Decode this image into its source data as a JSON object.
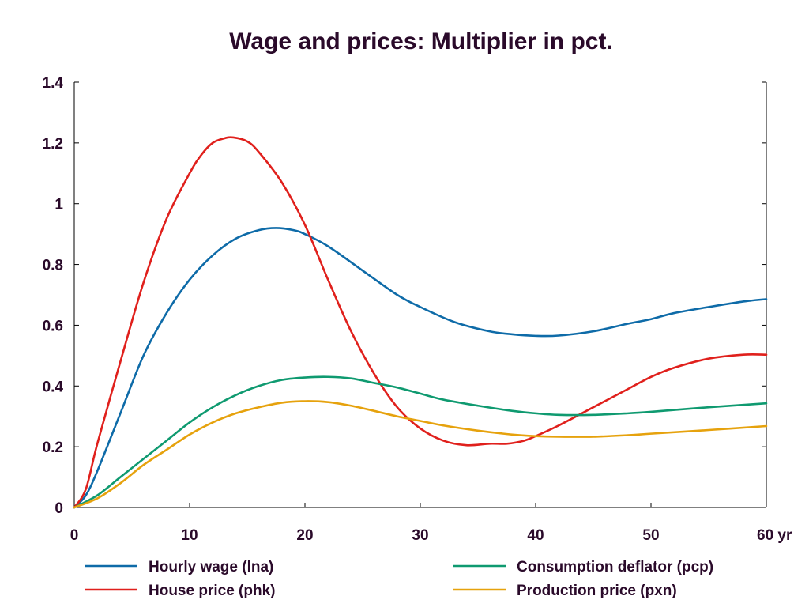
{
  "chart_data": {
    "type": "line",
    "title": "Wage and prices: Multiplier in pct.",
    "xlabel": "",
    "ylabel": "",
    "x_unit_label": "yr",
    "xlim": [
      0,
      60
    ],
    "ylim": [
      0,
      1.4
    ],
    "x_ticks": [
      0,
      10,
      20,
      30,
      40,
      50,
      60
    ],
    "x_tick_labels": [
      "0",
      "10",
      "20",
      "30",
      "40",
      "50",
      "60 yr"
    ],
    "y_ticks": [
      0,
      0.2,
      0.4,
      0.6,
      0.8,
      1.0,
      1.2,
      1.4
    ],
    "y_tick_labels": [
      "0",
      "0.2",
      "0.4",
      "0.6",
      "0.8",
      "1",
      "1.2",
      "1.4"
    ],
    "grid": false,
    "legend_position": "bottom",
    "series": [
      {
        "name": "Hourly wage (lna)",
        "color": "#0e6ba8",
        "x": [
          0,
          1,
          2,
          4,
          6,
          8,
          10,
          12,
          14,
          16,
          17.5,
          19,
          20,
          22,
          25,
          28,
          30,
          33,
          36,
          38,
          40,
          42,
          45,
          48,
          50,
          52,
          55,
          58,
          60
        ],
        "y": [
          0,
          0.04,
          0.12,
          0.31,
          0.5,
          0.64,
          0.75,
          0.83,
          0.885,
          0.913,
          0.92,
          0.913,
          0.9,
          0.86,
          0.78,
          0.7,
          0.66,
          0.61,
          0.58,
          0.57,
          0.565,
          0.566,
          0.58,
          0.605,
          0.62,
          0.64,
          0.66,
          0.678,
          0.686
        ]
      },
      {
        "name": "House price (phk)",
        "color": "#e0201c",
        "x": [
          0,
          1,
          2,
          4,
          6,
          8,
          10,
          11,
          12,
          13,
          13.8,
          15,
          16,
          18,
          20,
          22,
          24,
          26,
          28,
          30,
          32,
          34,
          36,
          37.5,
          39,
          40,
          42,
          45,
          48,
          50,
          52,
          55,
          58,
          60
        ],
        "y": [
          0,
          0.06,
          0.21,
          0.48,
          0.74,
          0.95,
          1.1,
          1.16,
          1.2,
          1.215,
          1.218,
          1.205,
          1.17,
          1.07,
          0.93,
          0.75,
          0.58,
          0.44,
          0.33,
          0.26,
          0.22,
          0.205,
          0.21,
          0.21,
          0.22,
          0.235,
          0.27,
          0.33,
          0.39,
          0.43,
          0.46,
          0.49,
          0.503,
          0.503
        ]
      },
      {
        "name": "Consumption deflator (pcp)",
        "color": "#0f9a70",
        "x": [
          0,
          2,
          4,
          6,
          8,
          10,
          12,
          14,
          16,
          18,
          20,
          22,
          24,
          26,
          28,
          30,
          32,
          35,
          38,
          40,
          42,
          45,
          48,
          50,
          55,
          60
        ],
        "y": [
          0,
          0.04,
          0.1,
          0.16,
          0.22,
          0.28,
          0.33,
          0.37,
          0.4,
          0.42,
          0.428,
          0.43,
          0.425,
          0.41,
          0.395,
          0.375,
          0.355,
          0.335,
          0.318,
          0.31,
          0.305,
          0.305,
          0.31,
          0.315,
          0.33,
          0.343
        ]
      },
      {
        "name": "Production price (pxn)",
        "color": "#e6a20d",
        "x": [
          0,
          2,
          4,
          6,
          8,
          10,
          12,
          14,
          16,
          18,
          20,
          22,
          24,
          26,
          28,
          30,
          32,
          35,
          38,
          40,
          42,
          45,
          48,
          50,
          55,
          60
        ],
        "y": [
          0,
          0.03,
          0.08,
          0.14,
          0.19,
          0.24,
          0.28,
          0.31,
          0.33,
          0.345,
          0.35,
          0.347,
          0.335,
          0.318,
          0.3,
          0.285,
          0.27,
          0.253,
          0.24,
          0.235,
          0.233,
          0.233,
          0.238,
          0.243,
          0.255,
          0.268
        ]
      }
    ]
  }
}
